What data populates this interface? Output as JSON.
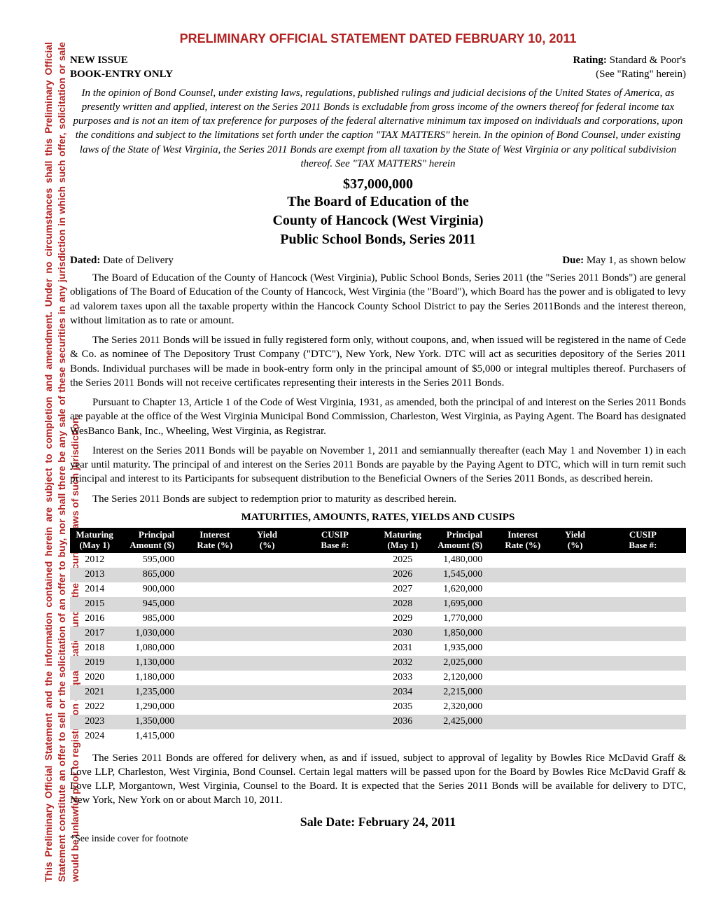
{
  "sidebar_text": "This Preliminary Official Statement and the information contained herein are subject to completion and amendment.  Under no circumstances shall this Preliminary Official Statement constitute an offer to sell or the solicitation of an offer to buy, nor shall there be any sale of these securities in any jurisdiction in which such offer, solicitation or sale would be unlawful prior to registration or qualification under the securities laws of such jurisdiction.",
  "colors": {
    "accent_red": "#b22222",
    "page_bg": "#ffffff",
    "table_header_bg": "#000000",
    "table_header_fg": "#ffffff",
    "row_alt_bg": "#d9d9d9",
    "body_text": "#000000"
  },
  "typography": {
    "body_family": "Times New Roman, serif",
    "accent_family": "Arial, Helvetica, sans-serif",
    "body_size_pt": 11,
    "title_size_pt": 14,
    "bond_block_size_pt": 15,
    "sale_date_size_pt": 14
  },
  "main_title": "PRELIMINARY OFFICIAL STATEMENT DATED FEBRUARY 10, 2011",
  "header": {
    "left_line1": "NEW ISSUE",
    "left_line2": "BOOK-ENTRY ONLY",
    "right_line1_label": "Rating:",
    "right_line1_value": "  Standard & Poor's",
    "right_line2": "(See \"Rating\" herein)"
  },
  "opinion": "In the opinion of Bond Counsel, under existing laws, regulations, published rulings and judicial decisions of the United States of America, as presently written and applied, interest on the Series 2011 Bonds is excludable from gross income of the owners thereof for federal income tax purposes and is not an item of tax preference for purposes of the federal alternative minimum tax imposed on individuals and corporations, upon the conditions and subject to the limitations set forth under the caption \"TAX MATTERS\" herein.  In the opinion of Bond Counsel, under existing laws of the State of West Virginia, the Series 2011 Bonds are exempt from all taxation by the State of West Virginia or any political subdivision thereof.   See \"TAX MATTERS\" herein",
  "bond": {
    "amount": "$37,000,000",
    "line1": "The Board of Education of the",
    "line2": "County of Hancock (West Virginia)",
    "line3": "Public School Bonds, Series 2011"
  },
  "dated_label": "Dated:  ",
  "dated_value": "Date of Delivery",
  "due_label": "Due: ",
  "due_value": "May 1, as shown below",
  "para1": "The Board of Education of the County of Hancock (West Virginia), Public School Bonds, Series 2011 (the \"Series 2011 Bonds\") are general obligations of The Board of Education of the County of Hancock, West Virginia (the \"Board\"), which Board has the power and is obligated to levy ad valorem taxes upon all the taxable property within the Hancock County School District to pay the Series 2011Bonds and the interest thereon, without limitation as to rate or amount.",
  "para2": "The Series 2011 Bonds will be issued in fully registered form only, without coupons, and, when issued will be registered in the name of Cede & Co. as nominee of The Depository Trust Company (\"DTC\"), New York, New York.  DTC will act as securities depository of the Series 2011 Bonds.  Individual purchases will be made in book-entry form only in the principal amount of $5,000 or integral multiples thereof.  Purchasers of the Series 2011 Bonds will not receive certificates representing their interests in the Series 2011 Bonds.",
  "para3": "Pursuant to Chapter 13, Article 1 of the Code of West Virginia, 1931, as amended, both the principal of and interest on the Series 2011 Bonds are payable at the office of the West Virginia Municipal Bond Commission, Charleston, West Virginia, as Paying Agent. The Board has designated WesBanco Bank, Inc., Wheeling, West Virginia, as Registrar.",
  "para4": "Interest on the Series 2011 Bonds will be payable on November 1, 2011 and semiannually thereafter (each May 1 and November 1) in each year until maturity.  The principal of and interest on the Series 2011 Bonds are payable by the Paying Agent to DTC, which will in turn remit such principal and interest to its Participants for subsequent distribution to the Beneficial Owners of the Series 2011 Bonds, as described herein.",
  "para5": "The Series 2011 Bonds are subject to redemption prior to maturity as described herein.",
  "maturities": {
    "title": "MATURITIES, AMOUNTS, RATES, YIELDS AND CUSIPS",
    "columns": {
      "c1_l1": "Maturing",
      "c1_l2": "(May 1)",
      "c2_l1": "Principal",
      "c2_l2": "Amount ($)",
      "c3_l1": "Interest",
      "c3_l2": "Rate (%)",
      "c4_l1": "Yield",
      "c4_l2": "(%)",
      "c5_l1": "CUSIP",
      "c5_l2": "Base #:"
    },
    "left_rows": [
      {
        "year": "2012",
        "amount": "595,000",
        "rate": "",
        "yield": "",
        "cusip": ""
      },
      {
        "year": "2013",
        "amount": "865,000",
        "rate": "",
        "yield": "",
        "cusip": ""
      },
      {
        "year": "2014",
        "amount": "900,000",
        "rate": "",
        "yield": "",
        "cusip": ""
      },
      {
        "year": "2015",
        "amount": "945,000",
        "rate": "",
        "yield": "",
        "cusip": ""
      },
      {
        "year": "2016",
        "amount": "985,000",
        "rate": "",
        "yield": "",
        "cusip": ""
      },
      {
        "year": "2017",
        "amount": "1,030,000",
        "rate": "",
        "yield": "",
        "cusip": ""
      },
      {
        "year": "2018",
        "amount": "1,080,000",
        "rate": "",
        "yield": "",
        "cusip": ""
      },
      {
        "year": "2019",
        "amount": "1,130,000",
        "rate": "",
        "yield": "",
        "cusip": ""
      },
      {
        "year": "2020",
        "amount": "1,180,000",
        "rate": "",
        "yield": "",
        "cusip": ""
      },
      {
        "year": "2021",
        "amount": "1,235,000",
        "rate": "",
        "yield": "",
        "cusip": ""
      },
      {
        "year": "2022",
        "amount": "1,290,000",
        "rate": "",
        "yield": "",
        "cusip": ""
      },
      {
        "year": "2023",
        "amount": "1,350,000",
        "rate": "",
        "yield": "",
        "cusip": ""
      },
      {
        "year": "2024",
        "amount": "1,415,000",
        "rate": "",
        "yield": "",
        "cusip": ""
      }
    ],
    "right_rows": [
      {
        "year": "2025",
        "amount": "1,480,000",
        "rate": "",
        "yield": "",
        "cusip": ""
      },
      {
        "year": "2026",
        "amount": "1,545,000",
        "rate": "",
        "yield": "",
        "cusip": ""
      },
      {
        "year": "2027",
        "amount": "1,620,000",
        "rate": "",
        "yield": "",
        "cusip": ""
      },
      {
        "year": "2028",
        "amount": "1,695,000",
        "rate": "",
        "yield": "",
        "cusip": ""
      },
      {
        "year": "2029",
        "amount": "1,770,000",
        "rate": "",
        "yield": "",
        "cusip": ""
      },
      {
        "year": "2030",
        "amount": "1,850,000",
        "rate": "",
        "yield": "",
        "cusip": ""
      },
      {
        "year": "2031",
        "amount": "1,935,000",
        "rate": "",
        "yield": "",
        "cusip": ""
      },
      {
        "year": "2032",
        "amount": "2,025,000",
        "rate": "",
        "yield": "",
        "cusip": ""
      },
      {
        "year": "2033",
        "amount": "2,120,000",
        "rate": "",
        "yield": "",
        "cusip": ""
      },
      {
        "year": "2034",
        "amount": "2,215,000",
        "rate": "",
        "yield": "",
        "cusip": ""
      },
      {
        "year": "2035",
        "amount": "2,320,000",
        "rate": "",
        "yield": "",
        "cusip": ""
      },
      {
        "year": "2036",
        "amount": "2,425,000",
        "rate": "",
        "yield": "",
        "cusip": ""
      },
      {
        "year": "",
        "amount": "",
        "rate": "",
        "yield": "",
        "cusip": ""
      }
    ],
    "styling": {
      "header_bg": "#000000",
      "header_fg": "#ffffff",
      "row_alt_bg": "#d9d9d9",
      "font_size_pt": 10.5,
      "column_widths_pct": [
        16,
        22,
        18,
        16,
        28
      ],
      "amount_align": "right"
    }
  },
  "closing_para": "The Series 2011 Bonds are offered for delivery when, as and if issued, subject to approval of legality by Bowles Rice McDavid Graff & Love LLP, Charleston, West Virginia, Bond Counsel.  Certain legal matters will be passed upon for the Board by Bowles Rice McDavid Graff & Love LLP, Morgantown, West Virginia, Counsel to the Board. It is expected that the Series 2011 Bonds will be available for delivery to DTC, New York, New York on or about March 10, 2011.",
  "sale_date": "Sale Date: February 24, 2011",
  "footnote": "*See inside cover for footnote"
}
